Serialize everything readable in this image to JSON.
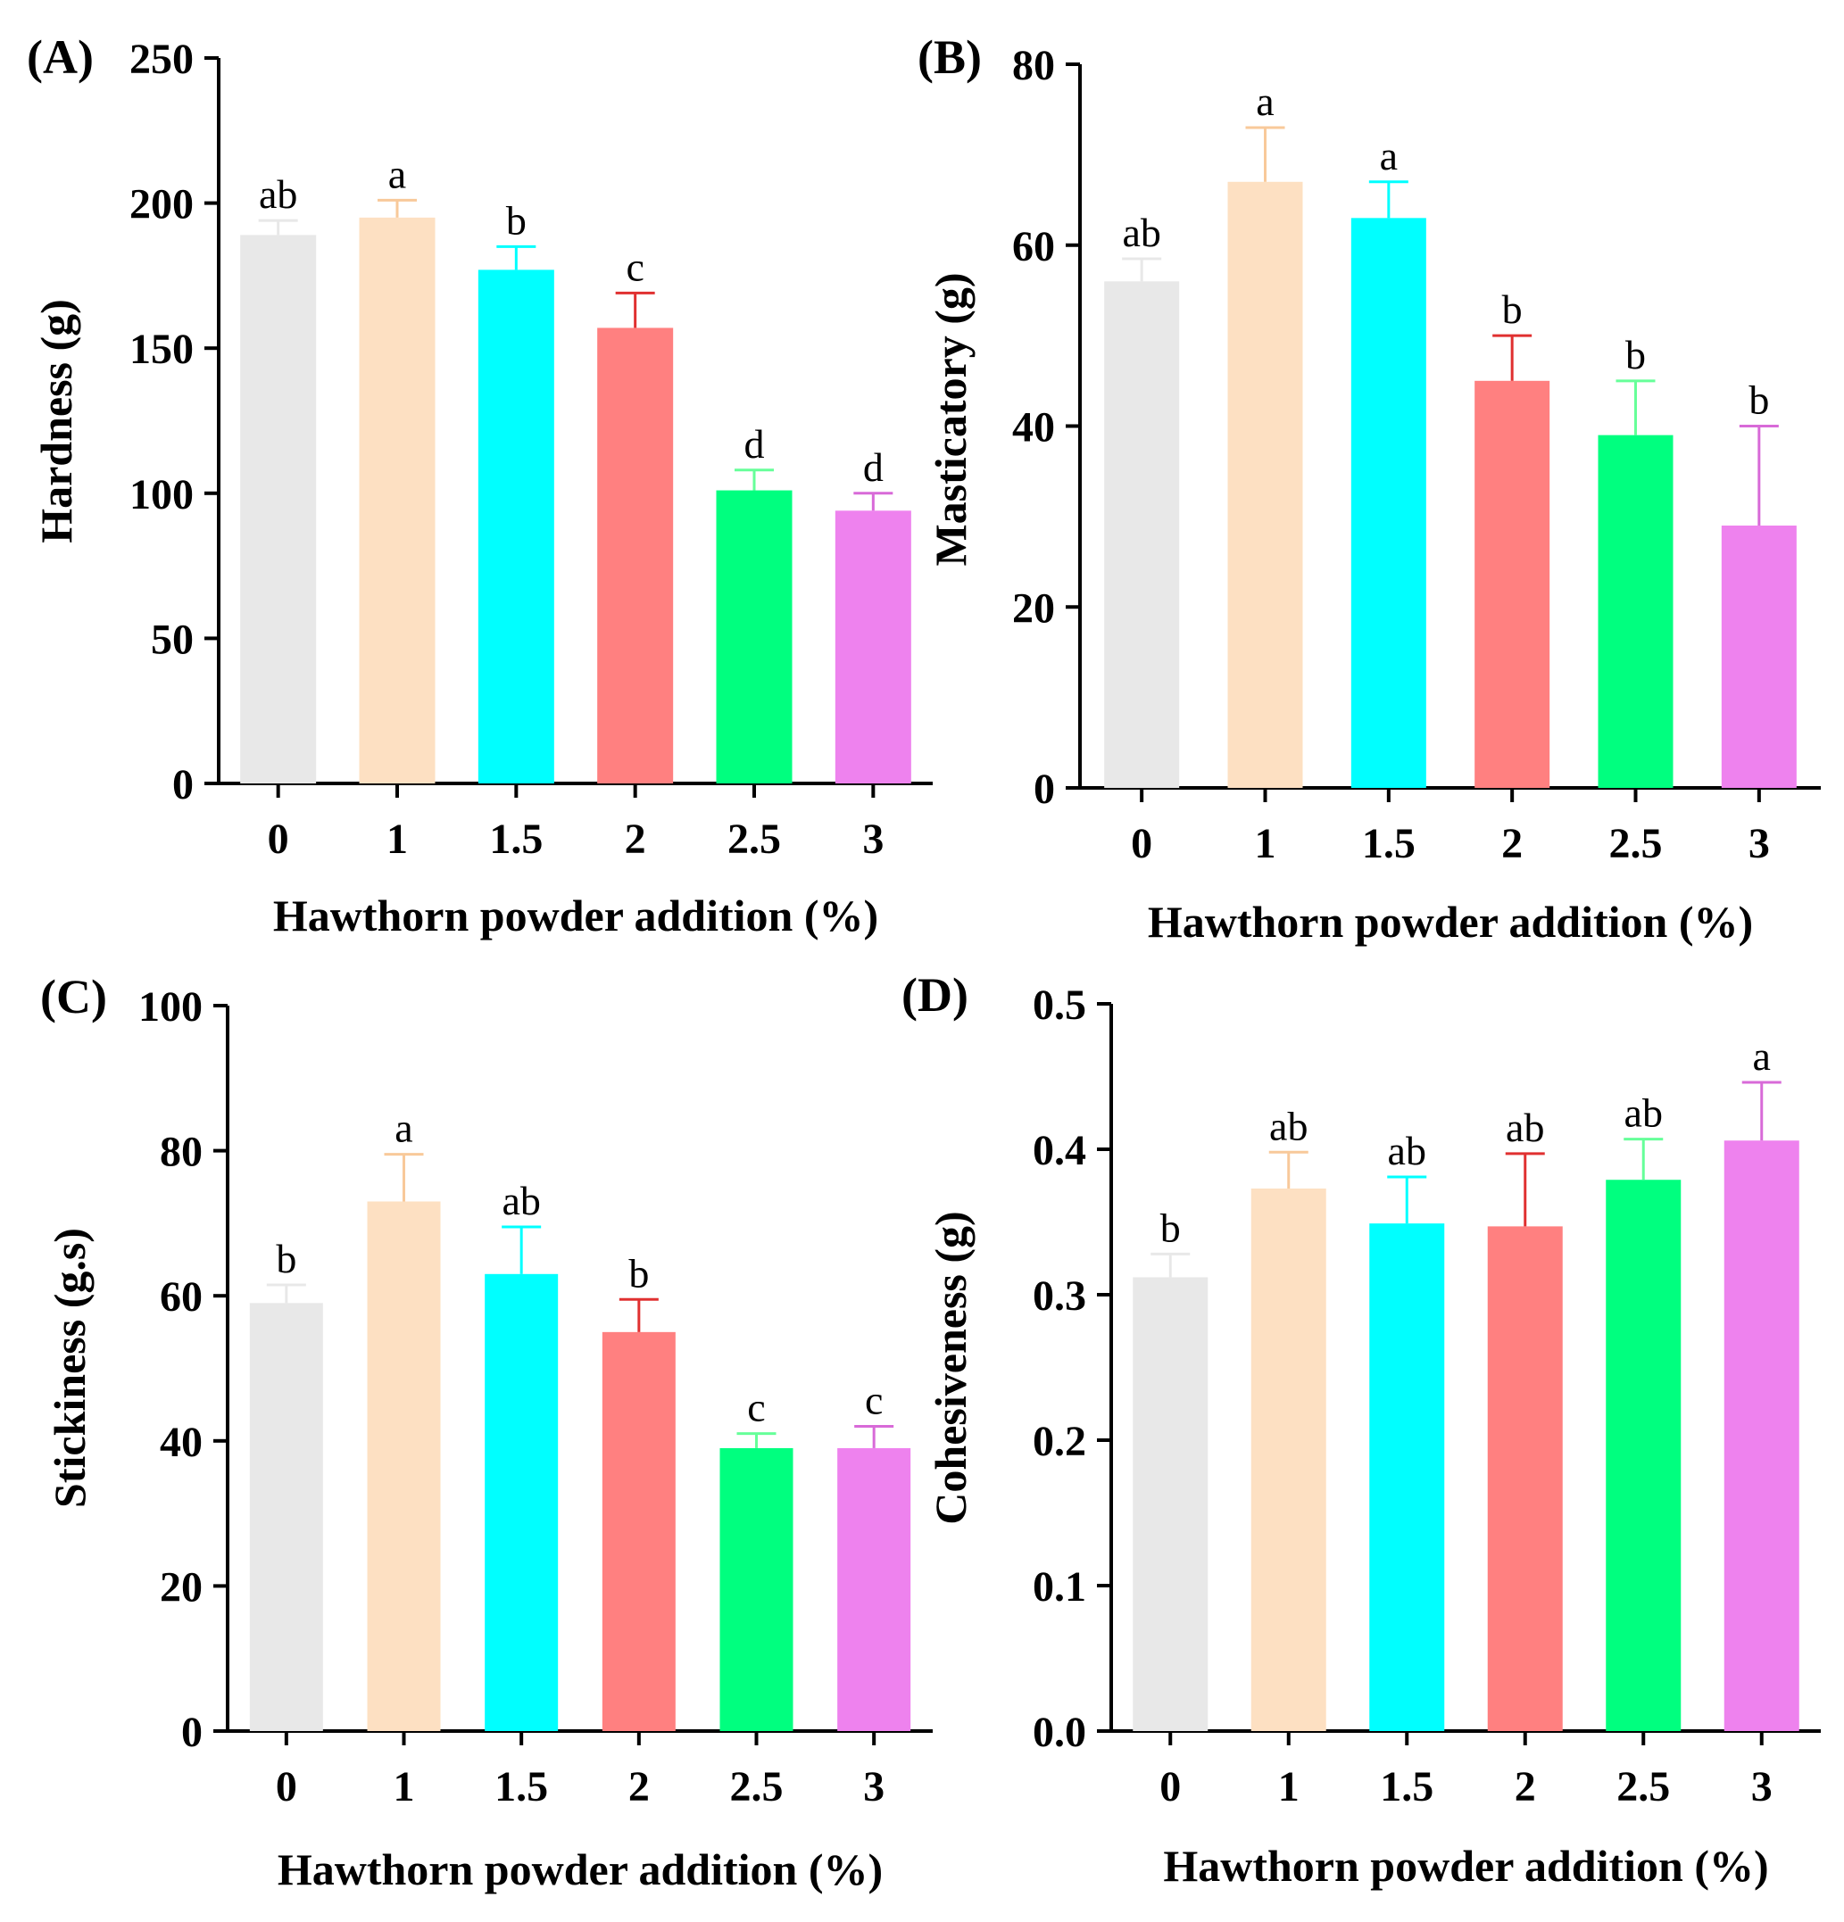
{
  "colors": [
    "#e8e8e8",
    "#fde0c2",
    "#00ffff",
    "#ff8080",
    "#00ff7f",
    "#ee82ee"
  ],
  "err_colors": [
    "#e8e8e8",
    "#f8c99a",
    "#00ffff",
    "#e03030",
    "#66ff99",
    "#d86ad8"
  ],
  "chart_data": [
    {
      "type": "bar",
      "panel": "(A)",
      "categories": [
        "0",
        "1",
        "1.5",
        "2",
        "2.5",
        "3"
      ],
      "values": [
        189,
        195,
        177,
        157,
        101,
        94
      ],
      "errors": [
        5,
        6,
        8,
        12,
        7,
        6
      ],
      "letters": [
        "ab",
        "a",
        "b",
        "c",
        "d",
        "d"
      ],
      "xlabel": "Hawthorn powder addition (%)",
      "ylabel": "Hardness (g)",
      "ylim": [
        0,
        250
      ],
      "yticks": [
        "0",
        "50",
        "100",
        "150",
        "200",
        "250"
      ]
    },
    {
      "type": "bar",
      "panel": "(B)",
      "categories": [
        "0",
        "1",
        "1.5",
        "2",
        "2.5",
        "3"
      ],
      "values": [
        56,
        67,
        63,
        45,
        39,
        29
      ],
      "errors": [
        2.5,
        6,
        4,
        5,
        6,
        11
      ],
      "letters": [
        "ab",
        "a",
        "a",
        "b",
        "b",
        "b"
      ],
      "xlabel": "Hawthorn powder addition (%)",
      "ylabel": "Masticatory (g)",
      "ylim": [
        0,
        80
      ],
      "yticks": [
        "0",
        "20",
        "40",
        "60",
        "80"
      ]
    },
    {
      "type": "bar",
      "panel": "(C)",
      "categories": [
        "0",
        "1",
        "1.5",
        "2",
        "2.5",
        "3"
      ],
      "values": [
        59,
        73,
        63,
        55,
        39,
        39
      ],
      "errors": [
        2.5,
        6.5,
        6.5,
        4.5,
        2,
        3
      ],
      "letters": [
        "b",
        "a",
        "ab",
        "b",
        "c",
        "c"
      ],
      "xlabel": "Hawthorn powder addition (%)",
      "ylabel": "Stickiness (g.s)",
      "ylim": [
        0,
        100
      ],
      "yticks": [
        "0",
        "20",
        "40",
        "60",
        "80",
        "100"
      ]
    },
    {
      "type": "bar",
      "panel": "(D)",
      "categories": [
        "0",
        "1",
        "1.5",
        "2",
        "2.5",
        "3"
      ],
      "values": [
        0.312,
        0.373,
        0.349,
        0.347,
        0.379,
        0.406
      ],
      "errors": [
        0.016,
        0.025,
        0.032,
        0.05,
        0.028,
        0.04
      ],
      "letters": [
        "b",
        "ab",
        "ab",
        "ab",
        "ab",
        "a"
      ],
      "xlabel": "Hawthorn powder addition (%)",
      "ylabel": "Cohesiveness (g)",
      "ylim": [
        0,
        0.5
      ],
      "yticks": [
        "0.0",
        "0.1",
        "0.2",
        "0.3",
        "0.4",
        "0.5"
      ]
    }
  ]
}
